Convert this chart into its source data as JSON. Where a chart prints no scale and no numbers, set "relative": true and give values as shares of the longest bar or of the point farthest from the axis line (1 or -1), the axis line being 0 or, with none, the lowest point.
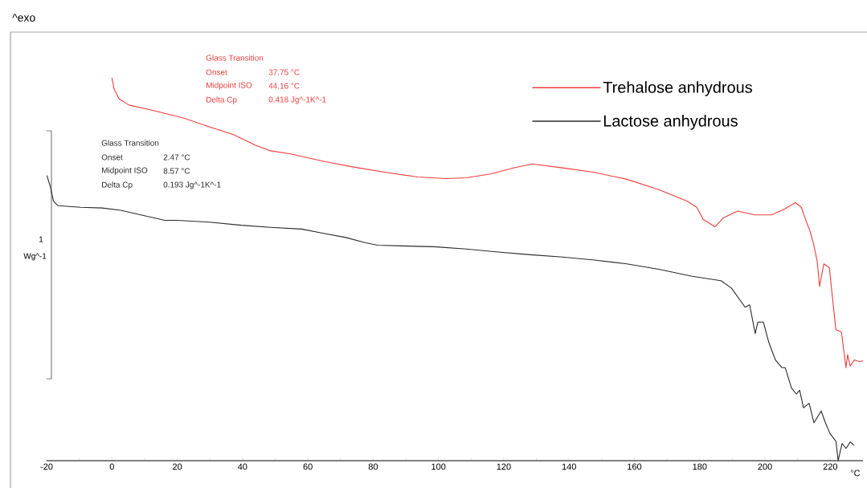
{
  "chart_data": {
    "type": "line",
    "relative": true,
    "xlabel": "°C",
    "xlim": [
      -20,
      230
    ],
    "xticks": [
      -20,
      0,
      20,
      40,
      60,
      80,
      100,
      120,
      140,
      160,
      180,
      200,
      220
    ],
    "legend": "top right",
    "annotations": [
      "^exo",
      "Glass Transition",
      "Onset",
      "37.75 °C",
      "Midpoint ISO",
      "44.16 °C",
      "Delta Cp",
      "0.418 Jg^-1K^-1",
      "Glass Transition",
      "Onset",
      "2.47 °C",
      "Midpoint ISO",
      "8.57 °C",
      "Delta Cp",
      "0.193 Jg^-1K^-1",
      "1",
      "Wg^-1"
    ],
    "series": [
      {
        "name": "Trehalose anhydrous",
        "color": "#f23c3c",
        "x": [
          0,
          0.7,
          2.2,
          5.2,
          12.5,
          21.9,
          29.8,
          37.1,
          44.0,
          48.2,
          54.4,
          65.4,
          74.0,
          83.9,
          93.7,
          102.3,
          108.5,
          115.9,
          123.2,
          128.7,
          138.0,
          147.8,
          157.7,
          167.5,
          176.1,
          179.1,
          181.1,
          184.7,
          187.2,
          191.6,
          197.0,
          202.0,
          205.7,
          209.3,
          211.1,
          212.5,
          213.8,
          214.8,
          216.0,
          216.7,
          218.0,
          219.7,
          221.7,
          223.4,
          224.8,
          225.3,
          226.1,
          227.3,
          229.0,
          230.0
        ],
        "values": [
          1.0,
          0.97,
          0.945,
          0.929,
          0.915,
          0.895,
          0.872,
          0.852,
          0.824,
          0.81,
          0.802,
          0.781,
          0.767,
          0.753,
          0.741,
          0.737,
          0.739,
          0.749,
          0.765,
          0.775,
          0.765,
          0.753,
          0.735,
          0.708,
          0.678,
          0.662,
          0.63,
          0.611,
          0.634,
          0.652,
          0.642,
          0.642,
          0.656,
          0.674,
          0.662,
          0.628,
          0.599,
          0.569,
          0.52,
          0.455,
          0.514,
          0.504,
          0.342,
          0.336,
          0.243,
          0.277,
          0.247,
          0.263,
          0.259,
          0.261
        ]
      },
      {
        "name": "Lactose anhydrous",
        "color": "#2b2b2b",
        "x": [
          -19.9,
          -18.9,
          -17.9,
          -16.5,
          -9.6,
          -3.0,
          2.7,
          8.9,
          16.2,
          19.9,
          29.8,
          39.6,
          49.4,
          58.1,
          64.2,
          71.6,
          77.7,
          81.4,
          88.8,
          98.6,
          108.5,
          118.3,
          128.2,
          138.0,
          147.8,
          157.7,
          167.5,
          177.4,
          186.5,
          189.7,
          193.9,
          195.3,
          197.0,
          197.8,
          199.5,
          201.2,
          203.2,
          205.2,
          206.2,
          208.1,
          209.6,
          210.6,
          211.8,
          213.5,
          215.0,
          217.2,
          218.5,
          219.9,
          221.7,
          222.4,
          223.6,
          224.8,
          226.1,
          227.3
        ],
        "values": [
          0.745,
          0.717,
          0.678,
          0.666,
          0.662,
          0.66,
          0.654,
          0.642,
          0.628,
          0.628,
          0.623,
          0.615,
          0.609,
          0.605,
          0.595,
          0.583,
          0.569,
          0.563,
          0.561,
          0.559,
          0.553,
          0.545,
          0.538,
          0.532,
          0.524,
          0.514,
          0.5,
          0.482,
          0.47,
          0.451,
          0.401,
          0.407,
          0.332,
          0.362,
          0.362,
          0.308,
          0.263,
          0.243,
          0.243,
          0.19,
          0.174,
          0.184,
          0.138,
          0.15,
          0.099,
          0.13,
          0.099,
          0.071,
          0.051,
          0.0,
          0.045,
          0.032,
          0.049,
          0.04
        ]
      }
    ]
  }
}
